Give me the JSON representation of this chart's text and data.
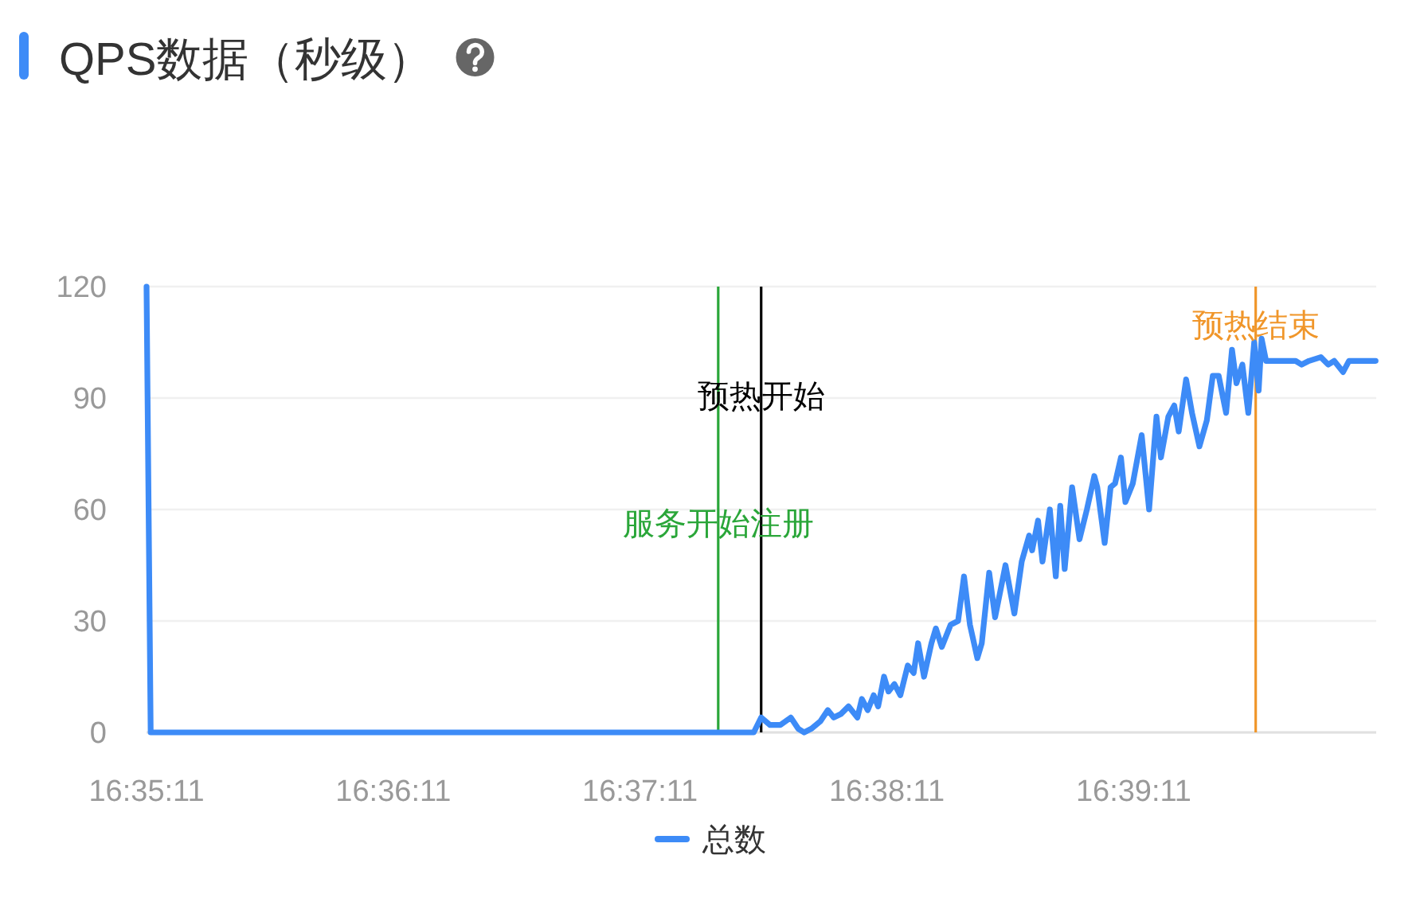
{
  "chart_data": {
    "type": "line",
    "title": "QPS数据（秒级）",
    "x": [
      16.58639,
      16.58667,
      16.6274,
      16.6279,
      16.6285,
      16.6292,
      16.6299,
      16.6304,
      16.6308,
      16.6313,
      16.6319,
      16.6324,
      16.6328,
      16.6333,
      16.6338,
      16.6344,
      16.6347,
      16.6351,
      16.6355,
      16.6358,
      16.6362,
      16.6365,
      16.6369,
      16.6373,
      16.6378,
      16.6382,
      16.6385,
      16.6389,
      16.6394,
      16.6397,
      16.6401,
      16.6407,
      16.6412,
      16.6416,
      16.642,
      16.6425,
      16.6428,
      16.6433,
      16.6437,
      16.644,
      16.6444,
      16.645,
      16.6455,
      16.646,
      16.6462,
      16.6466,
      16.6469,
      16.6474,
      16.6478,
      16.6481,
      16.6484,
      16.6489,
      16.6494,
      16.6499,
      16.6504,
      16.6506,
      16.6511,
      16.6515,
      16.6518,
      16.6522,
      16.6525,
      16.653,
      16.6536,
      16.6541,
      16.6546,
      16.6549,
      16.6554,
      16.6558,
      16.6561,
      16.6566,
      16.657,
      16.6575,
      16.658,
      16.6584,
      16.6588,
      16.6593,
      16.6597,
      16.66,
      16.6604,
      16.6608,
      16.6612,
      16.6615,
      16.6617,
      16.662,
      16.6629,
      16.664,
      16.6644,
      16.6649,
      16.6657,
      16.6662,
      16.6666,
      16.6672,
      16.6676,
      16.6694
    ],
    "series": [
      {
        "name": "总数",
        "color": "#3d8bf7",
        "values": [
          120,
          0,
          0,
          4,
          2,
          2,
          4,
          1,
          0,
          1,
          3,
          6,
          4,
          5,
          7,
          4,
          9,
          6,
          10,
          7,
          15,
          11,
          13,
          10,
          18,
          16,
          24,
          15,
          24,
          28,
          23,
          29,
          30,
          42,
          29,
          20,
          24,
          43,
          31,
          37,
          45,
          32,
          46,
          53,
          49,
          57,
          46,
          60,
          42,
          61,
          44,
          66,
          52,
          60,
          69,
          66,
          51,
          66,
          67,
          74,
          62,
          67,
          80,
          60,
          85,
          74,
          85,
          88,
          81,
          95,
          86,
          77,
          84,
          96,
          96,
          86,
          103,
          94,
          99,
          86,
          105,
          92,
          106,
          100,
          100,
          100,
          99,
          100,
          101,
          99,
          100,
          97,
          100,
          100
        ]
      }
    ],
    "xlim": [
      16.58639,
      16.66944
    ],
    "xticks": [
      {
        "value": 16.58639,
        "label": "16:35:11"
      },
      {
        "value": 16.60306,
        "label": "16:36:11"
      },
      {
        "value": 16.61972,
        "label": "16:37:11"
      },
      {
        "value": 16.63639,
        "label": "16:38:11"
      },
      {
        "value": 16.65306,
        "label": "16:39:11"
      }
    ],
    "ylim": [
      0,
      120
    ],
    "yticks": [
      0,
      30,
      60,
      90,
      120
    ],
    "ref_lines": [
      {
        "axis": "x",
        "value": 16.625,
        "label": "服务开始注册",
        "color": "#2aa639"
      },
      {
        "axis": "x",
        "value": 16.6279,
        "label": "预热开始",
        "color": "#000000"
      },
      {
        "axis": "x",
        "value": 16.6613,
        "label": "预热结束",
        "color": "#f0962a"
      }
    ],
    "grid": "y",
    "legend": "bottom"
  }
}
